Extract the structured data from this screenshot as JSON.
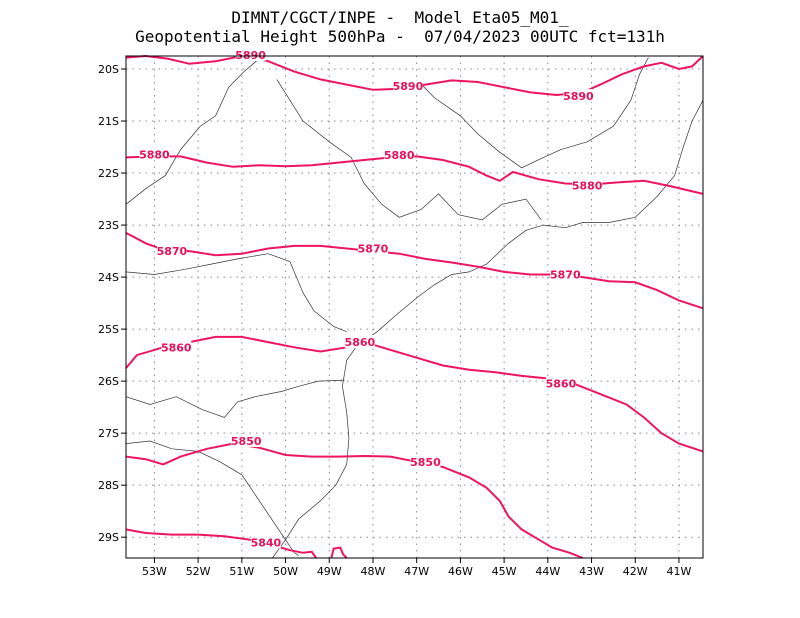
{
  "header": {
    "line1": "DIMNT/CGCT/INPE -  Model Eta05_M01_",
    "line2": "Geopotential Height 500hPa -  07/04/2023 00UTC fct=131h"
  },
  "map": {
    "lon_range": [
      -53.65,
      -40.45
    ],
    "lat_range": [
      -29.4,
      -19.75
    ],
    "lon_ticks": [
      {
        "value": -53,
        "label": "53W"
      },
      {
        "value": -52,
        "label": "52W"
      },
      {
        "value": -51,
        "label": "51W"
      },
      {
        "value": -50,
        "label": "50W"
      },
      {
        "value": -49,
        "label": "49W"
      },
      {
        "value": -48,
        "label": "48W"
      },
      {
        "value": -47,
        "label": "47W"
      },
      {
        "value": -46,
        "label": "46W"
      },
      {
        "value": -45,
        "label": "45W"
      },
      {
        "value": -44,
        "label": "44W"
      },
      {
        "value": -43,
        "label": "43W"
      },
      {
        "value": -42,
        "label": "42W"
      },
      {
        "value": -41,
        "label": "41W"
      }
    ],
    "lat_ticks": [
      {
        "value": -20,
        "label": "20S"
      },
      {
        "value": -21,
        "label": "21S"
      },
      {
        "value": -22,
        "label": "22S"
      },
      {
        "value": -23,
        "label": "23S"
      },
      {
        "value": -24,
        "label": "24S"
      },
      {
        "value": -25,
        "label": "25S"
      },
      {
        "value": -26,
        "label": "26S"
      },
      {
        "value": -27,
        "label": "27S"
      },
      {
        "value": -28,
        "label": "28S"
      },
      {
        "value": -29,
        "label": "29S"
      }
    ],
    "grid": "dotted",
    "contour_color": "#ee1560",
    "contours": [
      {
        "level": "5890",
        "points": [
          [
            -53.65,
            -19.78
          ],
          [
            -53.2,
            -19.75
          ],
          [
            -52.7,
            -19.8
          ],
          [
            -52.2,
            -19.9
          ],
          [
            -51.6,
            -19.85
          ],
          [
            -51,
            -19.75
          ],
          [
            -50.4,
            -19.85
          ],
          [
            -49.8,
            -20.05
          ],
          [
            -49.2,
            -20.2
          ],
          [
            -48.6,
            -20.3
          ],
          [
            -48,
            -20.4
          ],
          [
            -47.4,
            -20.38
          ],
          [
            -46.8,
            -20.3
          ],
          [
            -46.2,
            -20.22
          ],
          [
            -45.6,
            -20.25
          ],
          [
            -45,
            -20.35
          ],
          [
            -44.4,
            -20.45
          ],
          [
            -43.8,
            -20.5
          ],
          [
            -43.2,
            -20.45
          ],
          [
            -42.8,
            -20.3
          ],
          [
            -42.3,
            -20.1
          ],
          [
            -41.8,
            -19.95
          ],
          [
            -41.4,
            -19.88
          ],
          [
            -41,
            -20.0
          ],
          [
            -40.7,
            -19.95
          ],
          [
            -40.45,
            -19.75
          ]
        ],
        "labels": [
          {
            "text": "5890",
            "lon": -50.8,
            "lat": -19.73
          },
          {
            "text": "5890",
            "lon": -47.2,
            "lat": -20.33
          },
          {
            "text": "5890",
            "lon": -43.3,
            "lat": -20.52
          }
        ]
      },
      {
        "level": "5880",
        "points": [
          [
            -53.65,
            -21.7
          ],
          [
            -53,
            -21.68
          ],
          [
            -52.4,
            -21.68
          ],
          [
            -51.8,
            -21.8
          ],
          [
            -51.2,
            -21.88
          ],
          [
            -50.6,
            -21.85
          ],
          [
            -50,
            -21.87
          ],
          [
            -49.4,
            -21.85
          ],
          [
            -48.8,
            -21.8
          ],
          [
            -48.2,
            -21.75
          ],
          [
            -47.6,
            -21.7
          ],
          [
            -47,
            -21.68
          ],
          [
            -46.4,
            -21.75
          ],
          [
            -45.8,
            -21.88
          ],
          [
            -45.4,
            -22.05
          ],
          [
            -45.1,
            -22.15
          ],
          [
            -44.8,
            -21.98
          ],
          [
            -44.2,
            -22.12
          ],
          [
            -43.6,
            -22.2
          ],
          [
            -43,
            -22.22
          ],
          [
            -42.4,
            -22.18
          ],
          [
            -41.8,
            -22.15
          ],
          [
            -41.2,
            -22.25
          ],
          [
            -40.45,
            -22.4
          ]
        ],
        "labels": [
          {
            "text": "5880",
            "lon": -53.0,
            "lat": -21.64
          },
          {
            "text": "5880",
            "lon": -47.4,
            "lat": -21.65
          },
          {
            "text": "5880",
            "lon": -43.1,
            "lat": -22.24
          }
        ]
      },
      {
        "level": "5870",
        "points": [
          [
            -53.65,
            -23.15
          ],
          [
            -53.2,
            -23.35
          ],
          [
            -52.7,
            -23.5
          ],
          [
            -52.2,
            -23.5
          ],
          [
            -51.6,
            -23.58
          ],
          [
            -51,
            -23.55
          ],
          [
            -50.4,
            -23.45
          ],
          [
            -49.8,
            -23.4
          ],
          [
            -49.2,
            -23.4
          ],
          [
            -48.6,
            -23.45
          ],
          [
            -48,
            -23.5
          ],
          [
            -47.4,
            -23.55
          ],
          [
            -46.8,
            -23.65
          ],
          [
            -46.2,
            -23.72
          ],
          [
            -45.6,
            -23.8
          ],
          [
            -45,
            -23.9
          ],
          [
            -44.4,
            -23.95
          ],
          [
            -43.8,
            -23.95
          ],
          [
            -43.2,
            -24.0
          ],
          [
            -42.6,
            -24.08
          ],
          [
            -42,
            -24.1
          ],
          [
            -41.5,
            -24.25
          ],
          [
            -41,
            -24.45
          ],
          [
            -40.45,
            -24.6
          ]
        ],
        "labels": [
          {
            "text": "5870",
            "lon": -52.6,
            "lat": -23.5
          },
          {
            "text": "5870",
            "lon": -48.0,
            "lat": -23.45
          },
          {
            "text": "5870",
            "lon": -43.6,
            "lat": -23.95
          }
        ]
      },
      {
        "level": "5860",
        "points": [
          [
            -53.65,
            -25.75
          ],
          [
            -53.4,
            -25.5
          ],
          [
            -52.8,
            -25.35
          ],
          [
            -52.2,
            -25.25
          ],
          [
            -51.6,
            -25.15
          ],
          [
            -51,
            -25.15
          ],
          [
            -50.4,
            -25.25
          ],
          [
            -49.8,
            -25.35
          ],
          [
            -49.2,
            -25.43
          ],
          [
            -48.6,
            -25.35
          ],
          [
            -48.2,
            -25.25
          ],
          [
            -47.6,
            -25.4
          ],
          [
            -47,
            -25.55
          ],
          [
            -46.4,
            -25.7
          ],
          [
            -45.8,
            -25.78
          ],
          [
            -45.2,
            -25.83
          ],
          [
            -44.6,
            -25.9
          ],
          [
            -44,
            -25.95
          ],
          [
            -43.4,
            -26.05
          ],
          [
            -42.8,
            -26.25
          ],
          [
            -42.2,
            -26.45
          ],
          [
            -41.8,
            -26.7
          ],
          [
            -41.4,
            -27.0
          ],
          [
            -41,
            -27.2
          ],
          [
            -40.45,
            -27.35
          ]
        ],
        "labels": [
          {
            "text": "5860",
            "lon": -52.5,
            "lat": -25.35
          },
          {
            "text": "5860",
            "lon": -48.3,
            "lat": -25.25
          },
          {
            "text": "5860",
            "lon": -43.7,
            "lat": -26.05
          }
        ]
      },
      {
        "level": "5850",
        "points": [
          [
            -53.65,
            -27.45
          ],
          [
            -53.2,
            -27.5
          ],
          [
            -52.8,
            -27.6
          ],
          [
            -52.4,
            -27.45
          ],
          [
            -51.8,
            -27.3
          ],
          [
            -51.2,
            -27.2
          ],
          [
            -50.6,
            -27.28
          ],
          [
            -50,
            -27.42
          ],
          [
            -49.4,
            -27.45
          ],
          [
            -48.8,
            -27.45
          ],
          [
            -48.2,
            -27.44
          ],
          [
            -47.6,
            -27.45
          ],
          [
            -47,
            -27.55
          ],
          [
            -46.4,
            -27.65
          ],
          [
            -45.8,
            -27.85
          ],
          [
            -45.4,
            -28.05
          ],
          [
            -45.1,
            -28.3
          ],
          [
            -44.9,
            -28.6
          ],
          [
            -44.6,
            -28.85
          ],
          [
            -44.2,
            -29.05
          ],
          [
            -43.9,
            -29.2
          ],
          [
            -43.5,
            -29.3
          ],
          [
            -43.2,
            -29.4
          ]
        ],
        "labels": [
          {
            "text": "5850",
            "lon": -50.9,
            "lat": -27.15
          },
          {
            "text": "5850",
            "lon": -46.8,
            "lat": -27.55
          }
        ]
      },
      {
        "level": "5840",
        "points": [
          [
            -53.65,
            -28.85
          ],
          [
            -53.2,
            -28.92
          ],
          [
            -52.6,
            -28.95
          ],
          [
            -52,
            -28.95
          ],
          [
            -51.4,
            -28.98
          ],
          [
            -50.8,
            -29.05
          ],
          [
            -50.3,
            -29.15
          ],
          [
            -49.9,
            -29.25
          ],
          [
            -49.6,
            -29.3
          ],
          [
            -49.4,
            -29.28
          ],
          [
            -49.3,
            -29.4
          ]
        ],
        "labels": [
          {
            "text": "5840",
            "lon": -50.45,
            "lat": -29.1
          }
        ]
      }
    ],
    "contour_fragment": [
      [
        -48.95,
        -29.4
      ],
      [
        -48.9,
        -29.22
      ],
      [
        -48.75,
        -29.2
      ],
      [
        -48.68,
        -29.33
      ],
      [
        -48.6,
        -29.4
      ]
    ],
    "borders": [
      [
        [
          -50.6,
          -19.8
        ],
        [
          -50.95,
          -20.05
        ],
        [
          -51.3,
          -20.35
        ],
        [
          -51.6,
          -20.9
        ],
        [
          -51.95,
          -21.1
        ],
        [
          -52.4,
          -21.55
        ],
        [
          -52.75,
          -22.05
        ],
        [
          -53.2,
          -22.3
        ],
        [
          -53.65,
          -22.6
        ]
      ],
      [
        [
          -53.65,
          -23.9
        ],
        [
          -53.0,
          -23.95
        ],
        [
          -52.3,
          -23.85
        ],
        [
          -51.7,
          -23.75
        ],
        [
          -51.1,
          -23.65
        ],
        [
          -50.4,
          -23.55
        ],
        [
          -49.9,
          -23.7
        ],
        [
          -49.6,
          -24.3
        ],
        [
          -49.35,
          -24.65
        ],
        [
          -48.9,
          -24.95
        ],
        [
          -48.6,
          -25.05
        ]
      ],
      [
        [
          -53.65,
          -26.3
        ],
        [
          -53.1,
          -26.45
        ],
        [
          -52.5,
          -26.3
        ],
        [
          -51.9,
          -26.55
        ],
        [
          -51.4,
          -26.7
        ],
        [
          -51.1,
          -26.4
        ],
        [
          -50.7,
          -26.3
        ],
        [
          -50.1,
          -26.2
        ],
        [
          -49.7,
          -26.1
        ],
        [
          -49.25,
          -26.0
        ],
        [
          -48.65,
          -25.98
        ]
      ],
      [
        [
          -53.65,
          -27.2
        ],
        [
          -53.1,
          -27.15
        ],
        [
          -52.6,
          -27.3
        ],
        [
          -52.0,
          -27.35
        ],
        [
          -51.5,
          -27.55
        ],
        [
          -51.0,
          -27.8
        ],
        [
          -50.6,
          -28.3
        ],
        [
          -50.2,
          -28.8
        ],
        [
          -49.8,
          -29.3
        ],
        [
          -49.7,
          -29.35
        ]
      ],
      [
        [
          -50.2,
          -20.2
        ],
        [
          -49.9,
          -20.6
        ],
        [
          -49.6,
          -21.0
        ],
        [
          -49.0,
          -21.4
        ],
        [
          -48.5,
          -21.7
        ],
        [
          -48.2,
          -22.2
        ],
        [
          -47.8,
          -22.6
        ],
        [
          -47.4,
          -22.85
        ],
        [
          -46.9,
          -22.7
        ],
        [
          -46.5,
          -22.4
        ],
        [
          -46.05,
          -22.8
        ],
        [
          -45.5,
          -22.9
        ],
        [
          -45.05,
          -22.6
        ],
        [
          -44.5,
          -22.5
        ],
        [
          -44.15,
          -22.9
        ]
      ],
      [
        [
          -47.0,
          -20.2
        ],
        [
          -46.6,
          -20.55
        ],
        [
          -46.0,
          -20.9
        ],
        [
          -45.6,
          -21.25
        ],
        [
          -45.1,
          -21.6
        ],
        [
          -44.6,
          -21.9
        ],
        [
          -44.1,
          -21.7
        ],
        [
          -43.7,
          -21.55
        ],
        [
          -43.1,
          -21.4
        ],
        [
          -42.5,
          -21.1
        ],
        [
          -42.1,
          -20.6
        ],
        [
          -41.9,
          -20.1
        ],
        [
          -41.7,
          -19.78
        ]
      ]
    ],
    "coastline": [
      [
        -50.3,
        -29.4
      ],
      [
        -50.0,
        -29.05
      ],
      [
        -49.7,
        -28.65
      ],
      [
        -49.2,
        -28.3
      ],
      [
        -48.85,
        -28.0
      ],
      [
        -48.6,
        -27.6
      ],
      [
        -48.55,
        -27.1
      ],
      [
        -48.6,
        -26.6
      ],
      [
        -48.7,
        -26.1
      ],
      [
        -48.6,
        -25.6
      ],
      [
        -48.35,
        -25.3
      ],
      [
        -47.9,
        -25.05
      ],
      [
        -47.5,
        -24.75
      ],
      [
        -47.0,
        -24.4
      ],
      [
        -46.6,
        -24.15
      ],
      [
        -46.2,
        -23.95
      ],
      [
        -45.8,
        -23.9
      ],
      [
        -45.4,
        -23.75
      ],
      [
        -44.9,
        -23.35
      ],
      [
        -44.5,
        -23.1
      ],
      [
        -44.1,
        -23.0
      ],
      [
        -43.6,
        -23.05
      ],
      [
        -43.2,
        -22.95
      ],
      [
        -42.6,
        -22.95
      ],
      [
        -42.0,
        -22.85
      ],
      [
        -41.5,
        -22.45
      ],
      [
        -41.1,
        -22.05
      ],
      [
        -40.9,
        -21.5
      ],
      [
        -40.7,
        -21.0
      ],
      [
        -40.45,
        -20.6
      ]
    ]
  }
}
